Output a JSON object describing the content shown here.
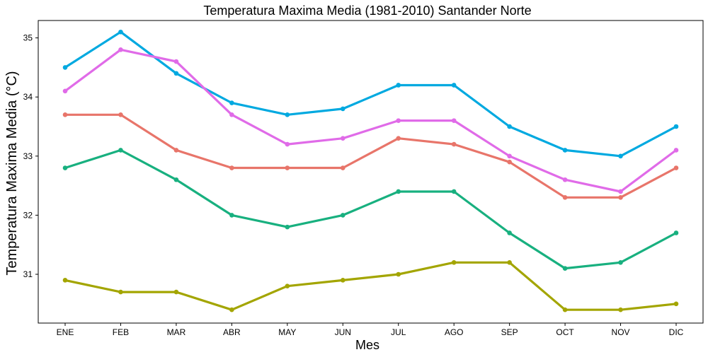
{
  "chart_data": {
    "type": "line",
    "title": "Temperatura Maxima Media (1981-2010)  Santander Norte",
    "xlabel": "Mes",
    "ylabel": "Temperatura Maxima Media  (°C)",
    "categories": [
      "ENE",
      "FEB",
      "MAR",
      "ABR",
      "MAY",
      "JUN",
      "JUL",
      "AGO",
      "SEP",
      "OCT",
      "NOV",
      "DIC"
    ],
    "ylim": [
      30.2,
      35.4
    ],
    "yticks": [
      31,
      32,
      33,
      34,
      35
    ],
    "grid": false,
    "legend": "none",
    "series": [
      {
        "color": "#00A9E0",
        "values": [
          34.5,
          35.1,
          34.4,
          33.9,
          33.7,
          33.8,
          34.2,
          34.2,
          33.5,
          33.1,
          33.0,
          33.5
        ]
      },
      {
        "color": "#E06BE8",
        "values": [
          34.1,
          34.8,
          34.6,
          33.7,
          33.2,
          33.3,
          33.6,
          33.6,
          33.0,
          32.6,
          32.4,
          33.1
        ]
      },
      {
        "color": "#E8756A",
        "values": [
          33.7,
          33.7,
          33.1,
          32.8,
          32.8,
          32.8,
          33.3,
          33.2,
          32.9,
          32.3,
          32.3,
          32.8
        ]
      },
      {
        "color": "#18B07F",
        "values": [
          32.8,
          33.1,
          32.6,
          32.0,
          31.8,
          32.0,
          32.4,
          32.4,
          31.7,
          31.1,
          31.2,
          31.7
        ]
      },
      {
        "color": "#A3A500",
        "values": [
          30.9,
          30.7,
          30.7,
          30.4,
          30.8,
          30.9,
          31.0,
          31.2,
          31.2,
          30.4,
          30.4,
          30.5
        ]
      }
    ]
  }
}
